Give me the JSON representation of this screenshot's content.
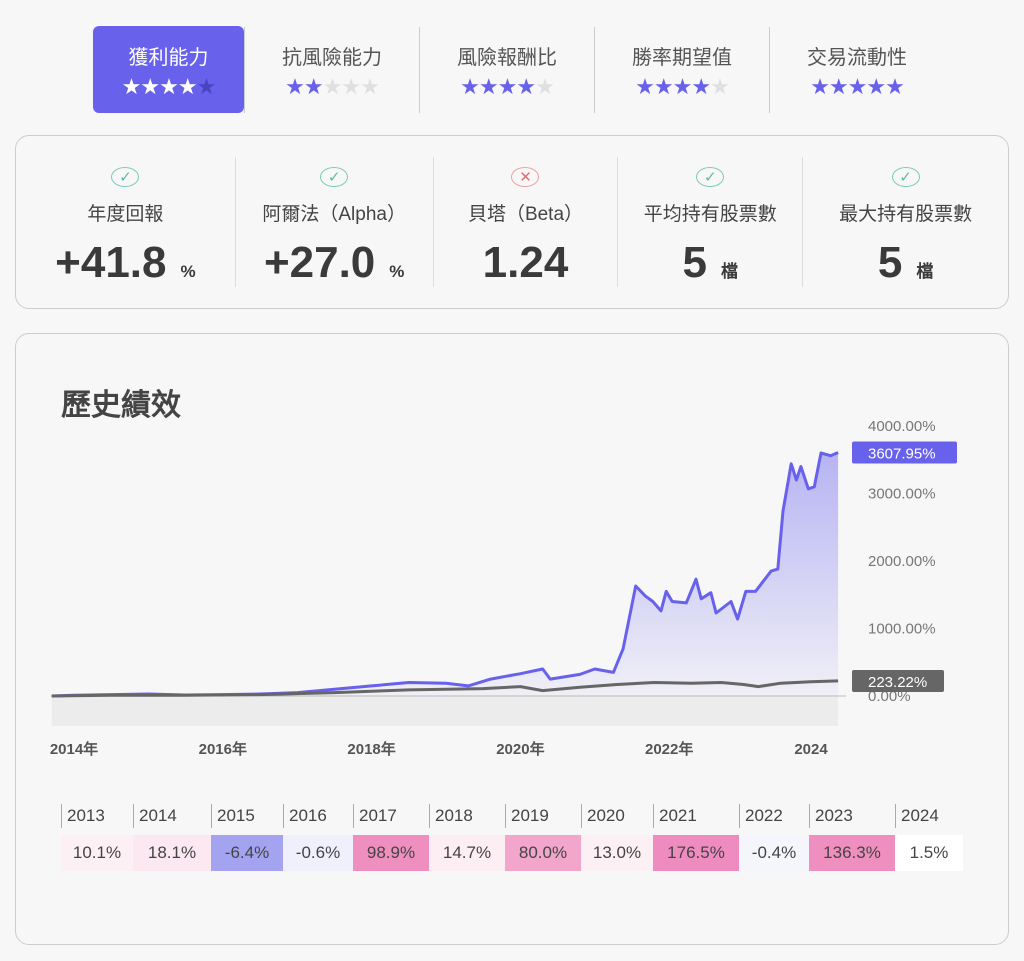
{
  "tabs": [
    {
      "label": "獲利能力",
      "stars": 4,
      "active": true
    },
    {
      "label": "抗風險能力",
      "stars": 2
    },
    {
      "label": "風險報酬比",
      "stars": 4
    },
    {
      "label": "勝率期望值",
      "stars": 4
    },
    {
      "label": "交易流動性",
      "stars": 5
    }
  ],
  "metrics": [
    {
      "label": "年度回報",
      "value": "+41.8",
      "unit": "%",
      "status": "check"
    },
    {
      "label": "阿爾法（Alpha）",
      "value": "+27.0",
      "unit": "%",
      "status": "check"
    },
    {
      "label": "貝塔（Beta）",
      "value": "1.24",
      "unit": "",
      "status": "cross"
    },
    {
      "label": "平均持有股票數",
      "value": "5",
      "unit": "檔",
      "status": "check"
    },
    {
      "label": "最大持有股票數",
      "value": "5",
      "unit": "檔",
      "status": "check"
    }
  ],
  "history": {
    "title": "歷史績效"
  },
  "chart_data": {
    "type": "area",
    "xticks": [
      "2014年",
      "2016年",
      "2018年",
      "2020年",
      "2022年",
      "2024"
    ],
    "xtick_values": [
      2014,
      2016,
      2018,
      2020,
      2022,
      2024
    ],
    "yticks": [
      "0.00%",
      "1000.00%",
      "2000.00%",
      "3000.00%",
      "4000.00%"
    ],
    "ylim": [
      0,
      4000
    ],
    "grid": false,
    "series": [
      {
        "color": "#6761ec",
        "last_label": "3607.95%",
        "points": [
          [
            2013.7,
            0
          ],
          [
            2014,
            10
          ],
          [
            2014.5,
            20
          ],
          [
            2015,
            30
          ],
          [
            2015.5,
            15
          ],
          [
            2016,
            20
          ],
          [
            2016.5,
            30
          ],
          [
            2017,
            50
          ],
          [
            2017.5,
            100
          ],
          [
            2018,
            150
          ],
          [
            2018.5,
            200
          ],
          [
            2019,
            190
          ],
          [
            2019.3,
            150
          ],
          [
            2019.6,
            250
          ],
          [
            2020,
            330
          ],
          [
            2020.3,
            400
          ],
          [
            2020.4,
            250
          ],
          [
            2020.8,
            320
          ],
          [
            2021,
            400
          ],
          [
            2021.25,
            350
          ],
          [
            2021.38,
            700
          ],
          [
            2021.55,
            1630
          ],
          [
            2021.68,
            1480
          ],
          [
            2021.78,
            1400
          ],
          [
            2021.89,
            1260
          ],
          [
            2021.96,
            1550
          ],
          [
            2022.04,
            1400
          ],
          [
            2022.23,
            1380
          ],
          [
            2022.36,
            1730
          ],
          [
            2022.43,
            1440
          ],
          [
            2022.56,
            1530
          ],
          [
            2022.63,
            1230
          ],
          [
            2022.83,
            1400
          ],
          [
            2022.92,
            1140
          ],
          [
            2023.03,
            1550
          ],
          [
            2023.16,
            1550
          ],
          [
            2023.37,
            1850
          ],
          [
            2023.46,
            1880
          ],
          [
            2023.53,
            2740
          ],
          [
            2023.64,
            3440
          ],
          [
            2023.71,
            3200
          ],
          [
            2023.77,
            3400
          ],
          [
            2023.87,
            3070
          ],
          [
            2023.95,
            3100
          ],
          [
            2024.04,
            3600
          ],
          [
            2024.17,
            3560
          ],
          [
            2024.27,
            3608
          ]
        ]
      },
      {
        "color": "#666666",
        "last_label": "223.22%",
        "points": [
          [
            2013.7,
            0
          ],
          [
            2014.5,
            10
          ],
          [
            2015.5,
            10
          ],
          [
            2016.5,
            20
          ],
          [
            2017.5,
            50
          ],
          [
            2018.5,
            90
          ],
          [
            2019.5,
            110
          ],
          [
            2020,
            140
          ],
          [
            2020.3,
            80
          ],
          [
            2020.8,
            130
          ],
          [
            2021.3,
            170
          ],
          [
            2021.8,
            200
          ],
          [
            2022.3,
            190
          ],
          [
            2022.7,
            200
          ],
          [
            2023,
            170
          ],
          [
            2023.2,
            140
          ],
          [
            2023.5,
            190
          ],
          [
            2023.9,
            210
          ],
          [
            2024.27,
            223
          ]
        ]
      }
    ],
    "annual_returns": [
      {
        "year": "2013",
        "value": "10.1%",
        "color": "#fdf0f5"
      },
      {
        "year": "2014",
        "value": "18.1%",
        "color": "#fce8f1"
      },
      {
        "year": "2015",
        "value": "-6.4%",
        "color": "#a3a3ef"
      },
      {
        "year": "2016",
        "value": "-0.6%",
        "color": "#f0effc"
      },
      {
        "year": "2017",
        "value": "98.9%",
        "color": "#ee8fbf"
      },
      {
        "year": "2018",
        "value": "14.7%",
        "color": "#fdeef4"
      },
      {
        "year": "2019",
        "value": "80.0%",
        "color": "#f2a6cc"
      },
      {
        "year": "2020",
        "value": "13.0%",
        "color": "#fdf0f5"
      },
      {
        "year": "2021",
        "value": "176.5%",
        "color": "#ee8cbf"
      },
      {
        "year": "2022",
        "value": "-0.4%",
        "color": "#f5f5fc"
      },
      {
        "year": "2023",
        "value": "136.3%",
        "color": "#ee8fbf"
      },
      {
        "year": "2024",
        "value": "1.5%",
        "color": "#ffffff"
      }
    ]
  }
}
